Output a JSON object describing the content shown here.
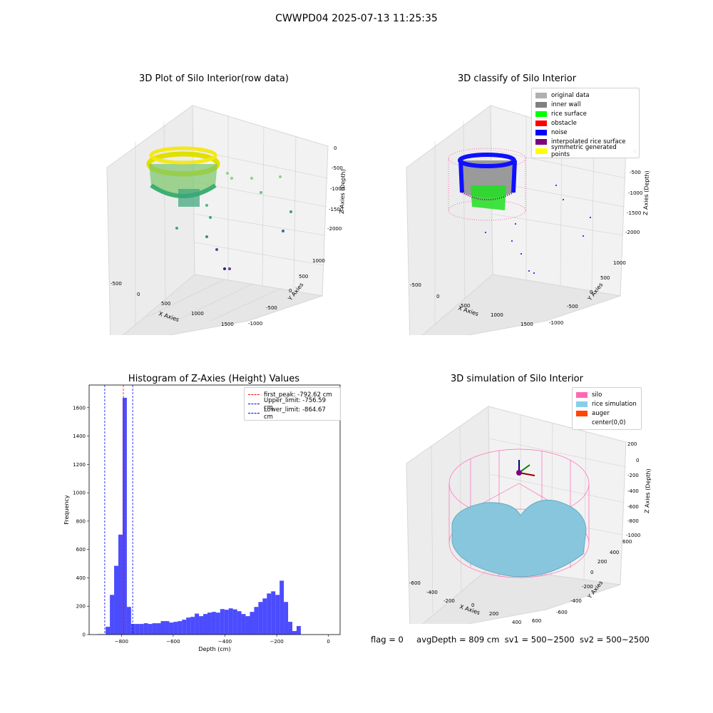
{
  "figure": {
    "title": "CWWPD04 2025-07-13 11:25:35",
    "status": {
      "flag": "flag = 0",
      "avg": "avgDepth = 809 cm",
      "sv1": "sv1 = 500~2500",
      "sv2": "sv2 = 500~2500"
    }
  },
  "panel_raw": {
    "title": "3D Plot of Silo Interior(row data)",
    "xlabel": "X Axies",
    "ylabel": "Y Axies",
    "zlabel": "Z Axies (Depth)",
    "x_ticks": [
      "-500",
      "0",
      "500",
      "1000",
      "1500"
    ],
    "y_ticks": [
      "-1000",
      "-500",
      "0",
      "500",
      "1000"
    ],
    "z_ticks": [
      "0",
      "-500",
      "-1000",
      "-1500",
      "-2000"
    ]
  },
  "panel_classify": {
    "title": "3D classify of Silo Interior",
    "xlabel": "X Axies",
    "ylabel": "Y Axies",
    "zlabel": "Z Axies (Depth)",
    "x_ticks": [
      "-500",
      "0",
      "500",
      "1000",
      "1500"
    ],
    "y_ticks": [
      "-1000",
      "-500",
      "0",
      "500",
      "1000"
    ],
    "z_ticks": [
      "0",
      "-500",
      "-1000",
      "-1500",
      "-2000"
    ],
    "legend": [
      {
        "label": "original data",
        "color": "#b0b0b0"
      },
      {
        "label": "inner wall",
        "color": "#808080"
      },
      {
        "label": "rice surface",
        "color": "#00ff00"
      },
      {
        "label": "obstacle",
        "color": "#ff0000"
      },
      {
        "label": "noise",
        "color": "#0000ff"
      },
      {
        "label": "interpolated rice surface",
        "color": "#800080"
      },
      {
        "label": "symmetric generated points",
        "color": "#ffff00"
      }
    ]
  },
  "panel_sim": {
    "title": "3D simulation of Silo Interior",
    "xlabel": "X Axies",
    "ylabel": "Y Axies",
    "zlabel": "Z Axies (Depth)",
    "x_ticks": [
      "-600",
      "-400",
      "-200",
      "0",
      "200",
      "400",
      "600"
    ],
    "y_ticks": [
      "-600",
      "-400",
      "-200",
      "0",
      "200",
      "400",
      "600"
    ],
    "z_ticks": [
      "200",
      "0",
      "-200",
      "-400",
      "-600",
      "-800",
      "-1000"
    ],
    "legend": [
      {
        "label": "silo",
        "color": "#ff69b4"
      },
      {
        "label": "rice simulation",
        "color": "#87ceeb"
      },
      {
        "label": "auger",
        "color": "#ff4500"
      },
      {
        "label": "center(0,0)",
        "color": "#ffffff"
      }
    ]
  },
  "chart_data": {
    "type": "bar",
    "title": "Histogram of Z-Axies (Height) Values",
    "xlabel": "Depth (cm)",
    "ylabel": "Frequency",
    "xlim": [
      -925,
      45
    ],
    "ylim": [
      0,
      1760
    ],
    "x_ticks": [
      -800,
      -600,
      -400,
      -200,
      0
    ],
    "y_ticks": [
      0,
      200,
      400,
      600,
      800,
      1000,
      1200,
      1400,
      1600
    ],
    "bin_width": 16.4,
    "bin_starts": [
      -894,
      -877.6,
      -861.2,
      -844.8,
      -828.4,
      -812,
      -795.6,
      -779.2,
      -762.8,
      -746.4,
      -730,
      -713.6,
      -697.2,
      -680.8,
      -664.4,
      -648,
      -631.6,
      -615.2,
      -598.8,
      -582.4,
      -566,
      -549.6,
      -533.2,
      -516.8,
      -500.4,
      -484,
      -467.6,
      -451.2,
      -434.8,
      -418.4,
      -402,
      -385.6,
      -369.2,
      -352.8,
      -336.4,
      -320,
      -303.6,
      -287.2,
      -270.8,
      -254.4,
      -238,
      -221.6,
      -205.2,
      -188.8,
      -172.4,
      -156,
      -139.6,
      -123.2,
      -106.8,
      -90.4,
      -74,
      -57.6,
      -41.2,
      -24.8,
      -8.4
    ],
    "values": [
      3,
      3,
      55,
      280,
      485,
      705,
      1670,
      195,
      75,
      75,
      75,
      80,
      75,
      80,
      80,
      95,
      95,
      85,
      90,
      95,
      105,
      120,
      125,
      148,
      130,
      145,
      155,
      160,
      155,
      180,
      175,
      185,
      178,
      165,
      145,
      130,
      160,
      195,
      230,
      255,
      290,
      305,
      280,
      380,
      230,
      90,
      25,
      60,
      0,
      0,
      0,
      0,
      0,
      0,
      0
    ],
    "color": "#0000ff",
    "legend": [
      {
        "label": "first_peak: -792.62 cm",
        "color": "#ff0000"
      },
      {
        "label": "Upper_limit: -756.59 cm",
        "color": "#0000ff"
      },
      {
        "label": "Lower_limit: -864.67 cm",
        "color": "#0000ff"
      }
    ],
    "lines": [
      {
        "x": -792.62,
        "color": "#ff0000"
      },
      {
        "x": -756.59,
        "color": "#0000ff"
      },
      {
        "x": -864.67,
        "color": "#0000ff"
      }
    ]
  }
}
